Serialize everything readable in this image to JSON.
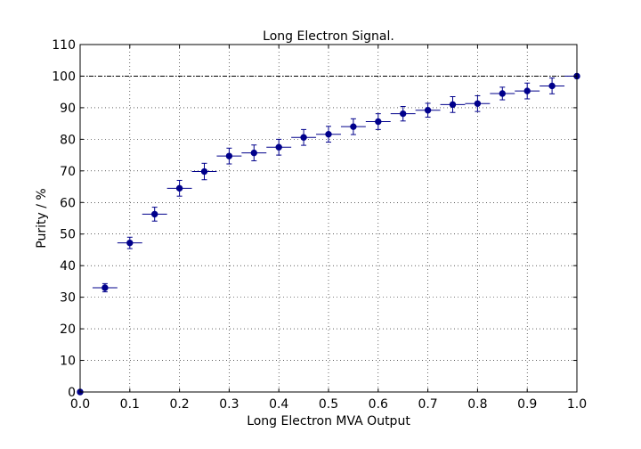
{
  "chart_data": {
    "type": "scatter",
    "title": "Long Electron Signal.",
    "xlabel": "Long Electron MVA Output",
    "ylabel": "Purity / %",
    "xlim": [
      0.0,
      1.0
    ],
    "ylim": [
      0,
      110
    ],
    "xticks": [
      "0.0",
      "0.1",
      "0.2",
      "0.3",
      "0.4",
      "0.5",
      "0.6",
      "0.7",
      "0.8",
      "0.9",
      "1.0"
    ],
    "yticks": [
      "0",
      "10",
      "20",
      "30",
      "40",
      "50",
      "60",
      "70",
      "80",
      "90",
      "100",
      "110"
    ],
    "grid": true,
    "reference_line_y": 100,
    "marker_color": "#00008b",
    "x_error": 0.025,
    "series": [
      {
        "x": [
          0.0,
          0.05,
          0.1,
          0.15,
          0.2,
          0.25,
          0.3,
          0.35,
          0.4,
          0.45,
          0.5,
          0.55,
          0.6,
          0.65,
          0.7,
          0.75,
          0.8,
          0.85,
          0.9,
          0.95,
          1.0
        ],
        "y": [
          0,
          33,
          47.2,
          56.3,
          64.5,
          69.8,
          74.7,
          75.7,
          77.5,
          80.6,
          81.6,
          84.0,
          85.6,
          88.1,
          89.2,
          91.0,
          91.3,
          94.5,
          95.3,
          96.9,
          100
        ],
        "yerr": [
          0.5,
          1.3,
          1.8,
          2.2,
          2.5,
          2.6,
          2.5,
          2.5,
          2.5,
          2.5,
          2.5,
          2.5,
          2.5,
          2.3,
          2.2,
          2.5,
          2.5,
          2.0,
          2.5,
          2.5,
          0.5
        ]
      }
    ]
  }
}
